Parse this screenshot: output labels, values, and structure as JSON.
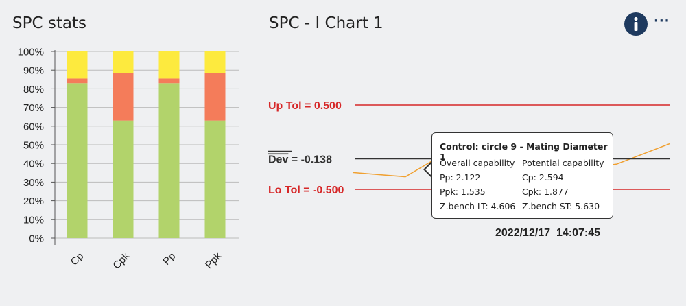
{
  "left_panel": {
    "title": "SPC stats"
  },
  "right_panel": {
    "title": "SPC - I Chart 1",
    "icons": [
      "info-icon",
      "more-icon"
    ],
    "more_label": "···"
  },
  "chart_data": [
    {
      "type": "bar",
      "stacked": true,
      "categories": [
        "Cp",
        "Cpk",
        "Pp",
        "Ppk"
      ],
      "series": [
        {
          "values": [
            83,
            63,
            83,
            63
          ],
          "color": "#b2d36b"
        },
        {
          "values": [
            2.5,
            25.5,
            2.5,
            25.5
          ],
          "color": "#f47c5a"
        },
        {
          "values": [
            14.5,
            11.5,
            14.5,
            11.5
          ],
          "color": "#fdea3e"
        }
      ],
      "yticks": [
        "0%",
        "10%",
        "20%",
        "30%",
        "40%",
        "50%",
        "60%",
        "70%",
        "80%",
        "90%",
        "100%"
      ],
      "ylim": [
        0,
        100
      ],
      "grid": true
    },
    {
      "type": "line",
      "reference_lines": [
        {
          "label": "Up Tol = 0.500",
          "value": 0.5,
          "color": "#d62728"
        },
        {
          "label_bar": "Dev",
          "label_rest": " = -0.138",
          "value": -0.138,
          "color": "#333333"
        },
        {
          "label": "Lo Tol = -0.500",
          "value": -0.5,
          "color": "#d62728"
        }
      ],
      "series": [
        {
          "color": "#f0a030",
          "values": [
            -0.3,
            -0.35,
            0.02,
            -0.06,
            -0.28,
            -0.2,
            0.04
          ]
        }
      ],
      "ylim": [
        -0.75,
        1.0
      ]
    }
  ],
  "tooltip": {
    "title": "Control: circle 9 - Mating Diameter 1",
    "header_left": "Overall capability",
    "header_right": "Potential capability",
    "rows": [
      {
        "left": "Pp: 2.122",
        "right": "Cp: 2.594"
      },
      {
        "left": "Ppk: 1.535",
        "right": "Cpk: 1.877"
      },
      {
        "left": "Z.bench LT: 4.606",
        "right": "Z.bench ST: 5.630"
      }
    ]
  },
  "timestamp": "2022/12/17  14:07:45"
}
